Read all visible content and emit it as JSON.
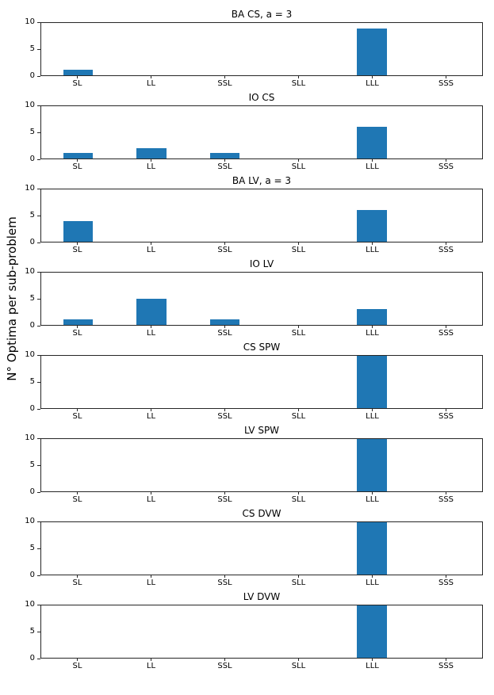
{
  "figure": {
    "ylabel": "N° Optima per sub-problem",
    "bar_color": "#1f77b4",
    "axis_color": "#262626"
  },
  "chart_data": [
    {
      "type": "bar",
      "title": "BA CS, a = 3",
      "categories": [
        "SL",
        "LL",
        "SSL",
        "SLL",
        "LLL",
        "SSS"
      ],
      "values": [
        1,
        0,
        0,
        0,
        9,
        0
      ],
      "ylim": [
        0,
        10
      ],
      "yticks": [
        0,
        5,
        10
      ],
      "ylabel": "N° Optima per sub-problem",
      "xlabel": "",
      "grid": false,
      "legend": "none"
    },
    {
      "type": "bar",
      "title": "IO CS",
      "categories": [
        "SL",
        "LL",
        "SSL",
        "SLL",
        "LLL",
        "SSS"
      ],
      "values": [
        1,
        2,
        1,
        0,
        6,
        0
      ],
      "ylim": [
        0,
        10
      ],
      "yticks": [
        0,
        5,
        10
      ],
      "ylabel": "",
      "xlabel": "",
      "grid": false,
      "legend": "none"
    },
    {
      "type": "bar",
      "title": "BA LV, a = 3",
      "categories": [
        "SL",
        "LL",
        "SSL",
        "SLL",
        "LLL",
        "SSS"
      ],
      "values": [
        4,
        0,
        0,
        0,
        6,
        0
      ],
      "ylim": [
        0,
        10
      ],
      "yticks": [
        0,
        5,
        10
      ],
      "ylabel": "",
      "xlabel": "",
      "grid": false,
      "legend": "none"
    },
    {
      "type": "bar",
      "title": "IO LV",
      "categories": [
        "SL",
        "LL",
        "SSL",
        "SLL",
        "LLL",
        "SSS"
      ],
      "values": [
        1,
        5,
        1,
        0,
        3,
        0
      ],
      "ylim": [
        0,
        10
      ],
      "yticks": [
        0,
        5,
        10
      ],
      "ylabel": "",
      "xlabel": "",
      "grid": false,
      "legend": "none"
    },
    {
      "type": "bar",
      "title": "CS SPW",
      "categories": [
        "SL",
        "LL",
        "SSL",
        "SLL",
        "LLL",
        "SSS"
      ],
      "values": [
        0,
        0,
        0,
        0,
        10,
        0
      ],
      "ylim": [
        0,
        10
      ],
      "yticks": [
        0,
        5,
        10
      ],
      "ylabel": "",
      "xlabel": "",
      "grid": false,
      "legend": "none"
    },
    {
      "type": "bar",
      "title": "LV SPW",
      "categories": [
        "SL",
        "LL",
        "SSL",
        "SLL",
        "LLL",
        "SSS"
      ],
      "values": [
        0,
        0,
        0,
        0,
        10,
        0
      ],
      "ylim": [
        0,
        10
      ],
      "yticks": [
        0,
        5,
        10
      ],
      "ylabel": "",
      "xlabel": "",
      "grid": false,
      "legend": "none"
    },
    {
      "type": "bar",
      "title": "CS DVW",
      "categories": [
        "SL",
        "LL",
        "SSL",
        "SLL",
        "LLL",
        "SSS"
      ],
      "values": [
        0,
        0,
        0,
        0,
        10,
        0
      ],
      "ylim": [
        0,
        10
      ],
      "yticks": [
        0,
        5,
        10
      ],
      "ylabel": "",
      "xlabel": "",
      "grid": false,
      "legend": "none"
    },
    {
      "type": "bar",
      "title": "LV DVW",
      "categories": [
        "SL",
        "LL",
        "SSL",
        "SLL",
        "LLL",
        "SSS"
      ],
      "values": [
        0,
        0,
        0,
        0,
        10,
        0
      ],
      "ylim": [
        0,
        10
      ],
      "yticks": [
        0,
        5,
        10
      ],
      "ylabel": "",
      "xlabel": "",
      "grid": false,
      "legend": "none"
    }
  ]
}
